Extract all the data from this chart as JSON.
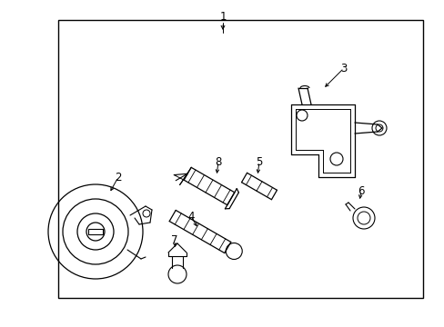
{
  "bg_color": "#ffffff",
  "line_color": "#000000",
  "fig_width": 4.89,
  "fig_height": 3.6,
  "dpi": 100,
  "border": [
    0.13,
    0.06,
    0.95,
    0.91
  ]
}
